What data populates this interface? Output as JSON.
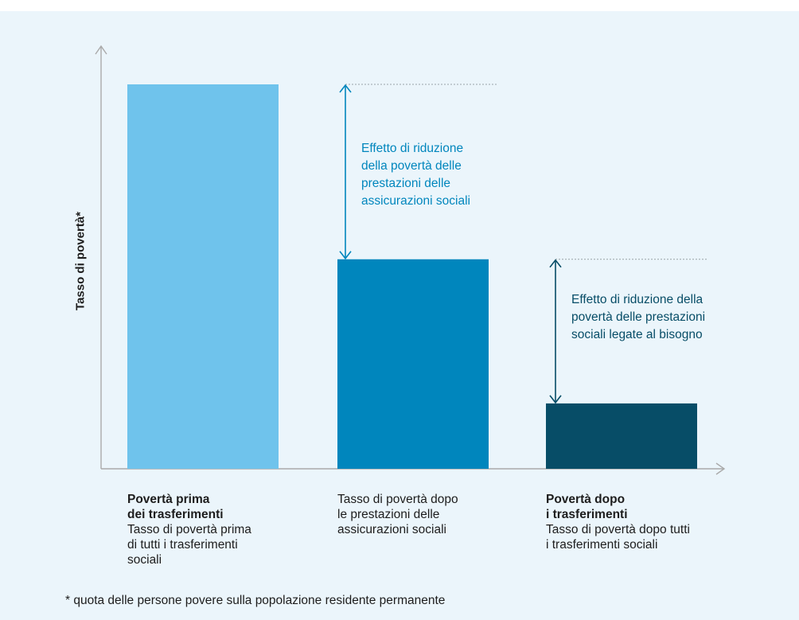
{
  "colors": {
    "bar1": "#6fc3ec",
    "bar2": "#0086bd",
    "bar3": "#074d67",
    "annotation1": "#0086bd",
    "annotation2": "#074d67",
    "axis": "#aaaaaa",
    "background": "#ebf5fb"
  },
  "chart_data": {
    "type": "bar",
    "ylabel": "Tasso di povertà*",
    "xlabel": "",
    "ylim": [
      0,
      100
    ],
    "grid": false,
    "categories": [
      {
        "bold": "Povertà prima\ndei trasferimenti",
        "normal": "Tasso di povertà prima\ndi tutti i trasferimenti\nsociali"
      },
      {
        "bold": "",
        "normal": "Tasso di povertà dopo\nle prestazioni delle\nassicurazioni sociali"
      },
      {
        "bold": "Povertà dopo\ni trasferimenti",
        "normal": "Tasso di povertà dopo tutti\ni trasferimenti sociali"
      }
    ],
    "values": [
      100,
      54.5,
      17
    ],
    "annotations": [
      {
        "text": "Effetto di riduzione\ndella povertà delle\nprestazioni delle\nassicurazioni sociali",
        "from_bar": 0,
        "to_bar": 1
      },
      {
        "text": "Effetto di riduzione della\npovertà delle prestazioni\nsociali legate al bisogno",
        "from_bar": 1,
        "to_bar": 2
      }
    ],
    "footnote": "* quota delle persone povere sulla popolazione residente permanente"
  }
}
